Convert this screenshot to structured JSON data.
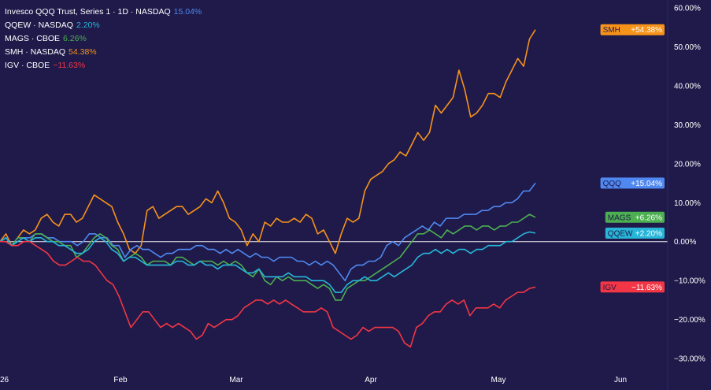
{
  "legend": [
    {
      "name": "Invesco QQQ Trust, Series 1 · 1D · NASDAQ",
      "value": "15.04%",
      "color": "#4f88f0"
    },
    {
      "name": "QQEW · NASDAQ",
      "value": "2.20%",
      "color": "#27b6d8"
    },
    {
      "name": "MAGS · CBOE",
      "value": "6.26%",
      "color": "#4caf50"
    },
    {
      "name": "SMH · NASDAQ",
      "value": "54.38%",
      "color": "#f7931a"
    },
    {
      "name": "IGV · CBOE",
      "value": "−11.63%",
      "color": "#f23645"
    }
  ],
  "chart_data": {
    "type": "line",
    "title": "",
    "xlabel": "",
    "ylabel": "",
    "ylim": [
      -33,
      62
    ],
    "x_ticks": [
      "26",
      "Feb",
      "Mar",
      "Apr",
      "May",
      "Jun"
    ],
    "y_ticks": [
      {
        "value": 60,
        "label": "60.00%"
      },
      {
        "value": 50,
        "label": "50.00%"
      },
      {
        "value": 40,
        "label": "40.00%"
      },
      {
        "value": 30,
        "label": "30.00%"
      },
      {
        "value": 20,
        "label": "20.00%"
      },
      {
        "value": 10,
        "label": "10.00%"
      },
      {
        "value": 0,
        "label": "0.00%"
      },
      {
        "value": -10,
        "label": "−10.00%"
      },
      {
        "value": -20,
        "label": "−20.00%"
      },
      {
        "value": -30,
        "label": "−30.00%"
      }
    ],
    "baseline": 0,
    "series": [
      {
        "name": "SMH",
        "color": "#f7931a",
        "badge": "+54.38%",
        "last": 54.38,
        "values": [
          0,
          2,
          -1,
          1,
          3,
          2,
          3,
          6,
          7,
          5,
          4,
          7,
          7,
          5,
          6,
          9,
          12,
          11,
          10,
          9,
          5,
          2,
          -2,
          -3,
          -1,
          8,
          9,
          6,
          7,
          8,
          9,
          9,
          7,
          8,
          9,
          11,
          10,
          13,
          10,
          6,
          5,
          3,
          -1,
          2,
          0,
          5,
          4,
          6,
          5,
          5,
          6,
          5,
          7,
          6,
          2,
          3,
          0,
          -3,
          2,
          6,
          5,
          6,
          13,
          16,
          17,
          18,
          20,
          21,
          23,
          22,
          25,
          28,
          26,
          28,
          35,
          33,
          35,
          37,
          44,
          39,
          32,
          33,
          35,
          38,
          38,
          37,
          41,
          44,
          47,
          45,
          52,
          54.38
        ]
      },
      {
        "name": "QQQ",
        "color": "#4f88f0",
        "badge": "+15.04%",
        "last": 15.04,
        "values": [
          0,
          1,
          -1,
          1,
          1,
          1,
          2,
          2,
          1,
          1,
          0,
          0,
          0,
          -1,
          0,
          2,
          2,
          1,
          1,
          -1,
          -1,
          -4,
          -2,
          -1,
          -2,
          -2,
          -3,
          -4,
          -3,
          -3,
          -2,
          -2,
          -2,
          -1,
          -1,
          -2,
          -2,
          -3,
          -2,
          -3,
          -2,
          -3,
          -4,
          -3,
          -4,
          -4,
          -5,
          -4,
          -4,
          -4,
          -5,
          -5,
          -6,
          -5,
          -6,
          -5,
          -6,
          -8,
          -10,
          -7,
          -6,
          -6,
          -5,
          -5,
          -4,
          -1,
          0,
          -1,
          1,
          2,
          3,
          4,
          3,
          5,
          4,
          6,
          6,
          6,
          7,
          7,
          7,
          8,
          8,
          9,
          9,
          10,
          10,
          11,
          13,
          13,
          15.04
        ]
      },
      {
        "name": "MAGS",
        "color": "#4caf50",
        "badge": "+6.26%",
        "last": 6.26,
        "values": [
          0,
          0,
          -1,
          1,
          1,
          0,
          2,
          2,
          1,
          0,
          0,
          -1,
          -1,
          -4,
          -3,
          -1,
          1,
          2,
          1,
          -1,
          -2,
          -5,
          -4,
          -3,
          -4,
          -6,
          -5,
          -5,
          -5,
          -6,
          -4,
          -4,
          -5,
          -6,
          -5,
          -5,
          -5,
          -6,
          -5,
          -6,
          -5,
          -6,
          -8,
          -9,
          -7,
          -10,
          -11,
          -9,
          -10,
          -9,
          -10,
          -10,
          -10,
          -11,
          -12,
          -11,
          -12,
          -15,
          -15,
          -12,
          -11,
          -10,
          -10,
          -9,
          -8,
          -7,
          -6,
          -5,
          -4,
          -2,
          0,
          2,
          2,
          3,
          2,
          1,
          3,
          2,
          3,
          4,
          4,
          3,
          4,
          4,
          3,
          4,
          4,
          5,
          5,
          6,
          7,
          6.26
        ]
      },
      {
        "name": "QQEW",
        "color": "#27b6d8",
        "badge": "+2.20%",
        "last": 2.2,
        "values": [
          0,
          1,
          -1,
          0,
          1,
          0,
          1,
          1,
          0,
          0,
          -1,
          -1,
          -2,
          -3,
          -3,
          -2,
          0,
          1,
          0,
          -2,
          -3,
          -5,
          -4,
          -4,
          -5,
          -6,
          -6,
          -6,
          -6,
          -6,
          -5,
          -5,
          -6,
          -6,
          -5,
          -6,
          -6,
          -7,
          -6,
          -6,
          -6,
          -7,
          -8,
          -8,
          -7,
          -9,
          -9,
          -9,
          -9,
          -8,
          -9,
          -9,
          -9,
          -10,
          -10,
          -10,
          -11,
          -13,
          -13,
          -11,
          -10,
          -10,
          -9,
          -10,
          -10,
          -9,
          -8,
          -9,
          -8,
          -7,
          -6,
          -4,
          -3,
          -3,
          -2,
          -3,
          -2,
          -3,
          -2,
          -2,
          -3,
          -2,
          -2,
          -1,
          -1,
          -1,
          0,
          0,
          1,
          2,
          2.5,
          2.2
        ]
      },
      {
        "name": "IGV",
        "color": "#f23645",
        "badge": "−11.63%",
        "last": -11.63,
        "values": [
          0,
          0,
          -1,
          -1,
          0,
          0,
          -1,
          -2,
          -3,
          -5,
          -6,
          -6,
          -5,
          -4,
          -5,
          -5,
          -6,
          -8,
          -10,
          -11,
          -14,
          -18,
          -22,
          -20,
          -18,
          -18,
          -20,
          -22,
          -21,
          -22,
          -21,
          -22,
          -23,
          -25,
          -24,
          -21,
          -22,
          -21,
          -20,
          -20,
          -19,
          -17,
          -16,
          -15,
          -15,
          -16,
          -15,
          -16,
          -15,
          -16,
          -17,
          -18,
          -18,
          -18,
          -17,
          -18,
          -22,
          -23,
          -24,
          -25,
          -24,
          -22,
          -23,
          -22,
          -22,
          -22,
          -22,
          -23,
          -26,
          -27,
          -22,
          -21,
          -19,
          -18,
          -18,
          -16,
          -15,
          -16,
          -15,
          -19,
          -17,
          -17,
          -17,
          -16,
          -17,
          -15,
          -14,
          -13,
          -13,
          -12,
          -11.63
        ]
      }
    ]
  }
}
